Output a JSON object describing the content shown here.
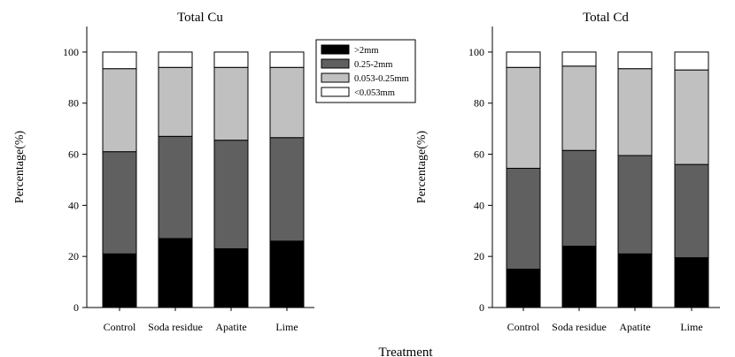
{
  "shared_xlabel": "Treatment",
  "legend": {
    "items": [
      {
        "label": ">2mm",
        "color": "#000000"
      },
      {
        "label": "0.25-2mm",
        "color": "#606060"
      },
      {
        "label": "0.053-0.25mm",
        "color": "#c0c0c0"
      },
      {
        "label": "<0.053mm",
        "color": "#ffffff"
      }
    ],
    "placement": "top-right of left panel"
  },
  "chart_data": [
    {
      "type": "bar",
      "stacked": true,
      "title": "Total Cu",
      "ylabel": "Percentage(%)",
      "xlabel": "",
      "ylim": [
        0,
        110
      ],
      "yticks": [
        0,
        20,
        40,
        60,
        80,
        100
      ],
      "grid": false,
      "categories": [
        "Control",
        "Soda residue",
        "Apatite",
        "Lime"
      ],
      "series": [
        {
          "name": ">2mm",
          "color": "#000000",
          "values": [
            21,
            27,
            23,
            26
          ]
        },
        {
          "name": "0.25-2mm",
          "color": "#606060",
          "values": [
            40,
            40,
            42.5,
            40.5
          ]
        },
        {
          "name": "0.053-0.25mm",
          "color": "#c0c0c0",
          "values": [
            32.5,
            27,
            28.5,
            27.5
          ]
        },
        {
          "name": "<0.053mm",
          "color": "#ffffff",
          "values": [
            6.5,
            6,
            6,
            6
          ]
        }
      ]
    },
    {
      "type": "bar",
      "stacked": true,
      "title": "Total Cd",
      "ylabel": "Percentage(%)",
      "xlabel": "",
      "ylim": [
        0,
        110
      ],
      "yticks": [
        0,
        20,
        40,
        60,
        80,
        100
      ],
      "grid": false,
      "categories": [
        "Control",
        "Soda residue",
        "Apatite",
        "Lime"
      ],
      "series": [
        {
          "name": ">2mm",
          "color": "#000000",
          "values": [
            15,
            24,
            21,
            19.5
          ]
        },
        {
          "name": "0.25-2mm",
          "color": "#606060",
          "values": [
            39.5,
            37.5,
            38.5,
            36.5
          ]
        },
        {
          "name": "0.053-0.25mm",
          "color": "#c0c0c0",
          "values": [
            39.5,
            33,
            34,
            37
          ]
        },
        {
          "name": "<0.053mm",
          "color": "#ffffff",
          "values": [
            6,
            5.5,
            6.5,
            7
          ]
        }
      ]
    }
  ]
}
